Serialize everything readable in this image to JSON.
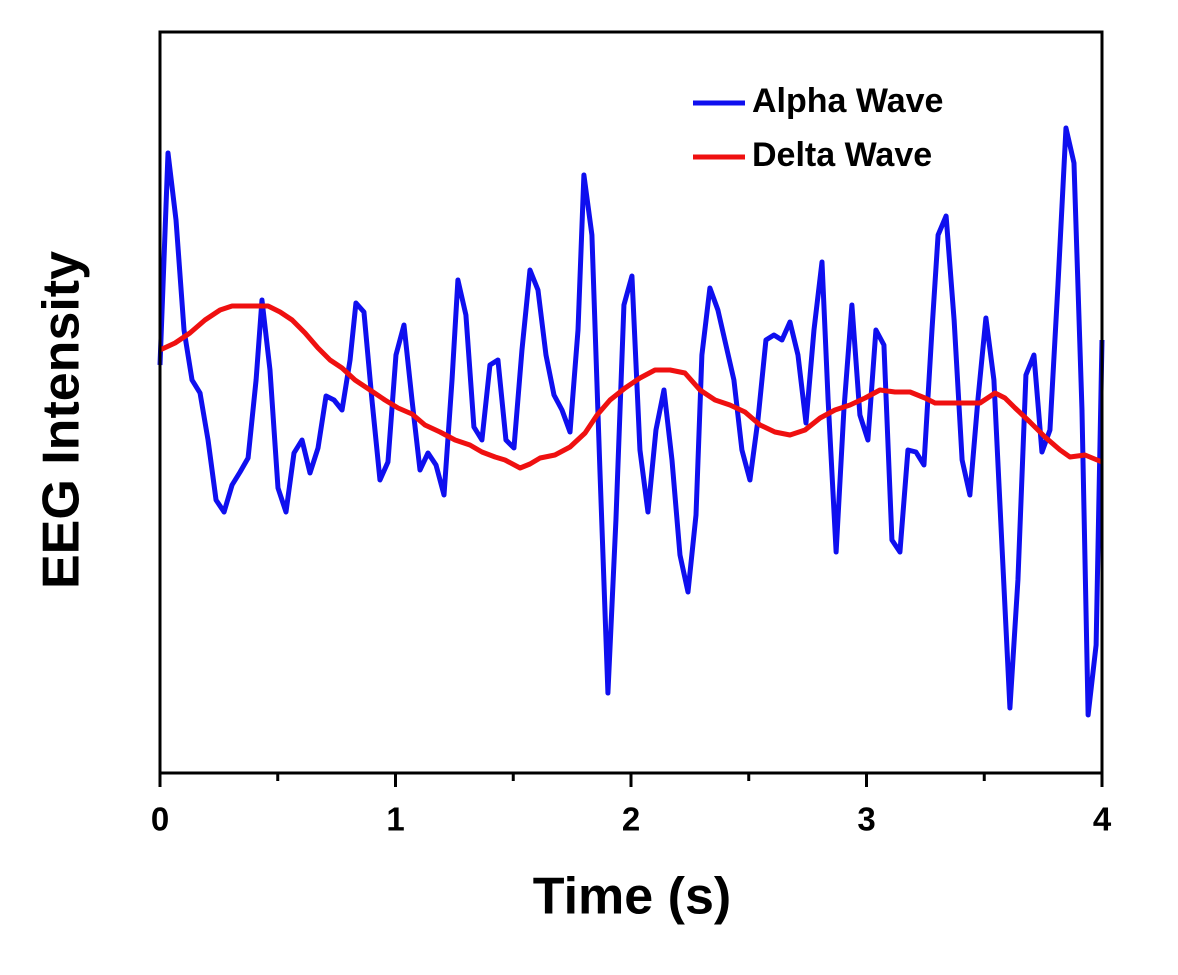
{
  "chart_data": {
    "type": "line",
    "x_label": "Time (s)",
    "y_label": "EEG Intensity",
    "xlim": [
      0,
      4
    ],
    "xticks": [
      0,
      1,
      2,
      3,
      4
    ],
    "xminorticks": [
      0.5,
      1.5,
      2.5,
      3.5
    ],
    "ylim": [
      0,
      741
    ],
    "legend": "upper right",
    "series": [
      {
        "name": "Alpha Wave",
        "color": "#0f0fef",
        "x": [
          0,
          0.034,
          0.068,
          0.102,
          0.136,
          0.17,
          0.204,
          0.238,
          0.272,
          0.306,
          0.34,
          0.374,
          0.408,
          0.433,
          0.467,
          0.501,
          0.535,
          0.569,
          0.603,
          0.637,
          0.671,
          0.705,
          0.739,
          0.773,
          0.807,
          0.832,
          0.866,
          0.9,
          0.934,
          0.968,
          1.002,
          1.036,
          1.07,
          1.104,
          1.138,
          1.172,
          1.206,
          1.24,
          1.265,
          1.299,
          1.333,
          1.367,
          1.401,
          1.435,
          1.469,
          1.503,
          1.537,
          1.571,
          1.605,
          1.639,
          1.673,
          1.707,
          1.741,
          1.775,
          1.8,
          1.834,
          1.868,
          1.902,
          1.936,
          1.97,
          2.004,
          2.038,
          2.072,
          2.106,
          2.14,
          2.174,
          2.208,
          2.242,
          2.276,
          2.301,
          2.335,
          2.369,
          2.403,
          2.437,
          2.471,
          2.505,
          2.539,
          2.573,
          2.607,
          2.641,
          2.675,
          2.709,
          2.743,
          2.777,
          2.811,
          2.837,
          2.871,
          2.904,
          2.938,
          2.972,
          3.006,
          3.04,
          3.074,
          3.108,
          3.142,
          3.176,
          3.21,
          3.244,
          3.278,
          3.304,
          3.338,
          3.372,
          3.406,
          3.439,
          3.473,
          3.507,
          3.541,
          3.575,
          3.609,
          3.643,
          3.677,
          3.711,
          3.745,
          3.779,
          3.813,
          3.847,
          3.881,
          3.915,
          3.941,
          3.975,
          4.0
        ],
        "values": [
          408,
          620,
          553,
          443,
          393,
          380,
          333,
          273,
          261,
          288,
          301,
          315,
          393,
          473,
          403,
          285,
          261,
          320,
          333,
          300,
          325,
          377,
          373,
          363,
          413,
          470,
          461,
          373,
          293,
          311,
          418,
          448,
          373,
          303,
          320,
          308,
          278,
          393,
          493,
          458,
          346,
          333,
          408,
          413,
          333,
          325,
          423,
          503,
          483,
          418,
          378,
          363,
          341,
          443,
          598,
          538,
          303,
          80,
          253,
          468,
          497,
          323,
          261,
          343,
          383,
          313,
          218,
          181,
          258,
          418,
          485,
          463,
          428,
          393,
          323,
          293,
          353,
          433,
          438,
          433,
          451,
          418,
          350,
          443,
          511,
          373,
          221,
          363,
          468,
          358,
          333,
          443,
          428,
          233,
          221,
          323,
          321,
          308,
          443,
          538,
          557,
          453,
          313,
          278,
          373,
          455,
          393,
          228,
          65,
          193,
          398,
          418,
          321,
          343,
          488,
          645,
          610,
          363,
          58,
          128,
          433
        ]
      },
      {
        "name": "Delta Wave",
        "color": "#ef1010",
        "x": [
          0,
          0.064,
          0.127,
          0.191,
          0.255,
          0.306,
          0.382,
          0.459,
          0.51,
          0.561,
          0.616,
          0.671,
          0.722,
          0.773,
          0.828,
          0.892,
          0.955,
          1.011,
          1.07,
          1.125,
          1.189,
          1.253,
          1.316,
          1.367,
          1.423,
          1.465,
          1.529,
          1.571,
          1.614,
          1.677,
          1.741,
          1.805,
          1.856,
          1.911,
          1.975,
          2.038,
          2.102,
          2.166,
          2.229,
          2.293,
          2.357,
          2.42,
          2.484,
          2.548,
          2.611,
          2.675,
          2.739,
          2.803,
          2.866,
          2.93,
          2.994,
          3.057,
          3.121,
          3.185,
          3.248,
          3.291,
          3.355,
          3.418,
          3.482,
          3.546,
          3.588,
          3.631,
          3.694,
          3.758,
          3.822,
          3.864,
          3.928,
          4.0
        ],
        "values": [
          423,
          430,
          440,
          453,
          463,
          467,
          467,
          467,
          461,
          453,
          440,
          425,
          413,
          405,
          393,
          383,
          373,
          365,
          359,
          348,
          341,
          333,
          328,
          321,
          316,
          313,
          305,
          309,
          315,
          318,
          326,
          340,
          358,
          373,
          385,
          395,
          403,
          403,
          400,
          383,
          373,
          368,
          361,
          348,
          341,
          338,
          343,
          355,
          363,
          368,
          375,
          383,
          381,
          381,
          375,
          370,
          370,
          370,
          370,
          380,
          375,
          365,
          351,
          336,
          323,
          316,
          318,
          311
        ]
      }
    ]
  }
}
